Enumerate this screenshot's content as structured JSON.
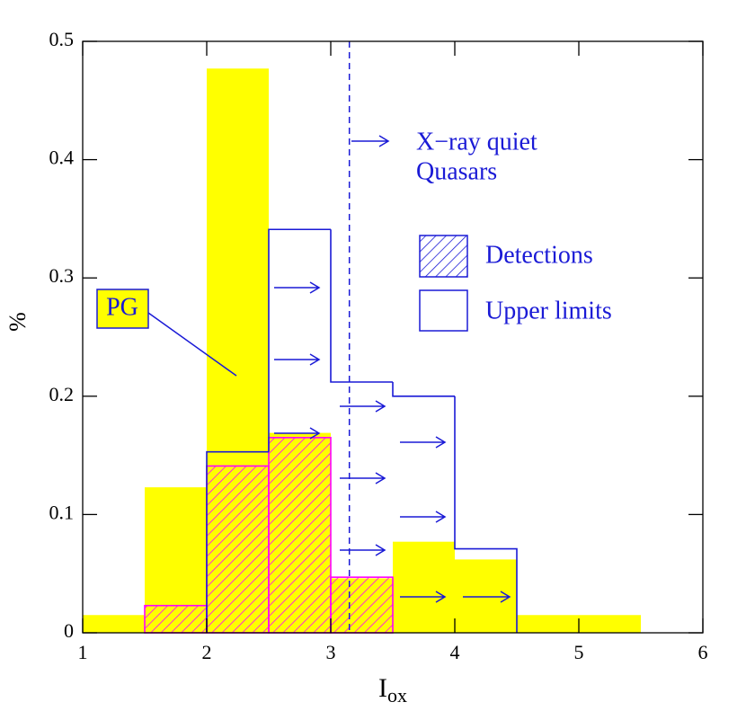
{
  "chart_data": {
    "type": "histogram",
    "xlabel": {
      "text": "I",
      "subscript": "ox"
    },
    "ylabel": "%",
    "xlim": [
      1,
      6
    ],
    "ylim": [
      0,
      0.5
    ],
    "xticks": [
      1,
      2,
      3,
      4,
      5,
      6
    ],
    "yticks": [
      0,
      0.1,
      0.2,
      0.3,
      0.4,
      0.5
    ],
    "series": [
      {
        "name": "PG",
        "color": "#ffff00",
        "style": "fill",
        "bins": [
          1,
          1.5,
          2,
          2.5,
          3,
          3.5,
          4,
          4.5,
          5,
          5.5
        ],
        "values": [
          0.015,
          0.123,
          0.477,
          0.169,
          0.046,
          0.077,
          0.062,
          0.015,
          0.015
        ]
      },
      {
        "name": "Detections",
        "color": "#ff00ff",
        "style": "hatch",
        "bins": [
          1.5,
          2,
          2.5,
          3,
          3.5
        ],
        "values": [
          0.023,
          0.141,
          0.165,
          0.047
        ]
      },
      {
        "name": "Upper limits",
        "color": "#1a1ad6",
        "style": "step",
        "bins": [
          2,
          2.5,
          3,
          3.5,
          4,
          4.5
        ],
        "values": [
          0.153,
          0.341,
          0.212,
          0.2,
          0.071
        ]
      }
    ],
    "vline": 3.15,
    "annotation": [
      "X−ray quiet",
      "Quasars"
    ],
    "legend": "upper right"
  }
}
